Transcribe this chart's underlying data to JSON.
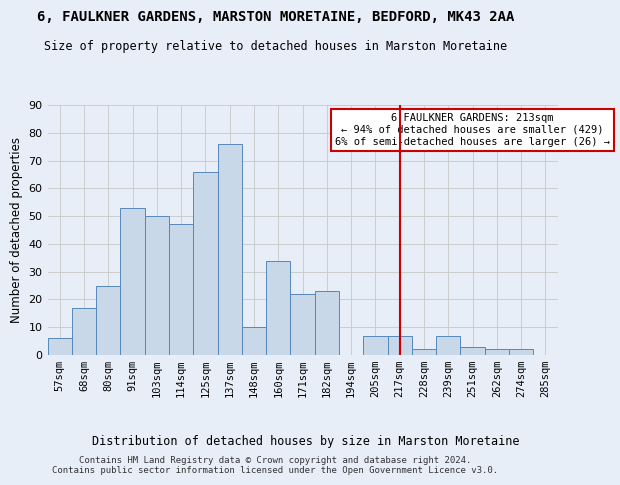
{
  "title": "6, FAULKNER GARDENS, MARSTON MORETAINE, BEDFORD, MK43 2AA",
  "subtitle": "Size of property relative to detached houses in Marston Moretaine",
  "xlabel": "Distribution of detached houses by size in Marston Moretaine",
  "ylabel": "Number of detached properties",
  "footer1": "Contains HM Land Registry data © Crown copyright and database right 2024.",
  "footer2": "Contains public sector information licensed under the Open Government Licence v3.0.",
  "categories": [
    "57sqm",
    "68sqm",
    "80sqm",
    "91sqm",
    "103sqm",
    "114sqm",
    "125sqm",
    "137sqm",
    "148sqm",
    "160sqm",
    "171sqm",
    "182sqm",
    "194sqm",
    "205sqm",
    "217sqm",
    "228sqm",
    "239sqm",
    "251sqm",
    "262sqm",
    "274sqm",
    "285sqm"
  ],
  "values": [
    6,
    17,
    25,
    53,
    50,
    47,
    66,
    76,
    10,
    34,
    22,
    23,
    0,
    7,
    7,
    2,
    7,
    3,
    2,
    2,
    0
  ],
  "bar_color": "#c8d8e8",
  "bar_edge_color": "#5588bb",
  "grid_color": "#cccccc",
  "background_color": "#e8eef8",
  "vline_x_index": 14.0,
  "vline_color": "#cc0000",
  "annotation_text": "6 FAULKNER GARDENS: 213sqm\n← 94% of detached houses are smaller (429)\n6% of semi-detached houses are larger (26) →",
  "annotation_box_color": "#ffffff",
  "annotation_border_color": "#cc0000",
  "ylim": [
    0,
    90
  ],
  "yticks": [
    0,
    10,
    20,
    30,
    40,
    50,
    60,
    70,
    80,
    90
  ]
}
